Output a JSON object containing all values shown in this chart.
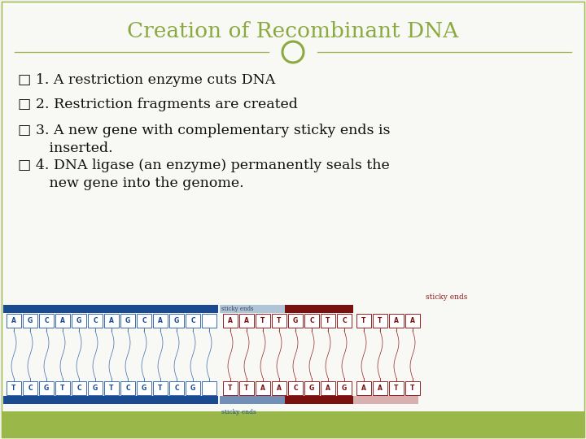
{
  "title": "Creation of Recombinant DNA",
  "title_color": "#8aaa40",
  "title_fontsize": 19,
  "background_color": "#f0f0e8",
  "slide_bg": "#f8f8f4",
  "footer_color": "#9ab84a",
  "bullet_lines": [
    "□ 1. A restriction enzyme cuts DNA",
    "□ 2. Restriction fragments are created",
    "□ 3. A new gene with complementary sticky ends is\n       inserted.",
    "□ 4. DNA ligase (an enzyme) permanently seals the\n       new gene into the genome."
  ],
  "bullet_fontsize": 12.5,
  "bullet_color": "#111111",
  "divider_color": "#9ab84a",
  "circle_color": "#8aaa40",
  "dna_blue_dark": "#1a4a90",
  "dna_blue_mid": "#2255a8",
  "dna_box_blue": "#3a6ab0",
  "dna_red_dark": "#7a1010",
  "dna_red_mid": "#952020",
  "dna_red_light": "#c09090",
  "dna_red_pale": "#d8b0b0",
  "sticky_label_color": "#8b1a1a",
  "left_top": [
    "A",
    "G",
    "C",
    "A",
    "G",
    "C",
    "A",
    "G",
    "C",
    "A",
    "G",
    "C"
  ],
  "left_bot": [
    "T",
    "C",
    "G",
    "T",
    "C",
    "G",
    "T",
    "C",
    "G",
    "T",
    "C",
    "G"
  ],
  "right_top": [
    "A",
    "A",
    "T",
    "T",
    "G",
    "C",
    "T",
    "C"
  ],
  "right_bot": [
    "T",
    "T",
    "A",
    "A",
    "C",
    "G",
    "A",
    "G"
  ],
  "far_top": [
    "T",
    "T",
    "A",
    "A"
  ],
  "far_bot": [
    "A",
    "A",
    "T",
    "T"
  ]
}
